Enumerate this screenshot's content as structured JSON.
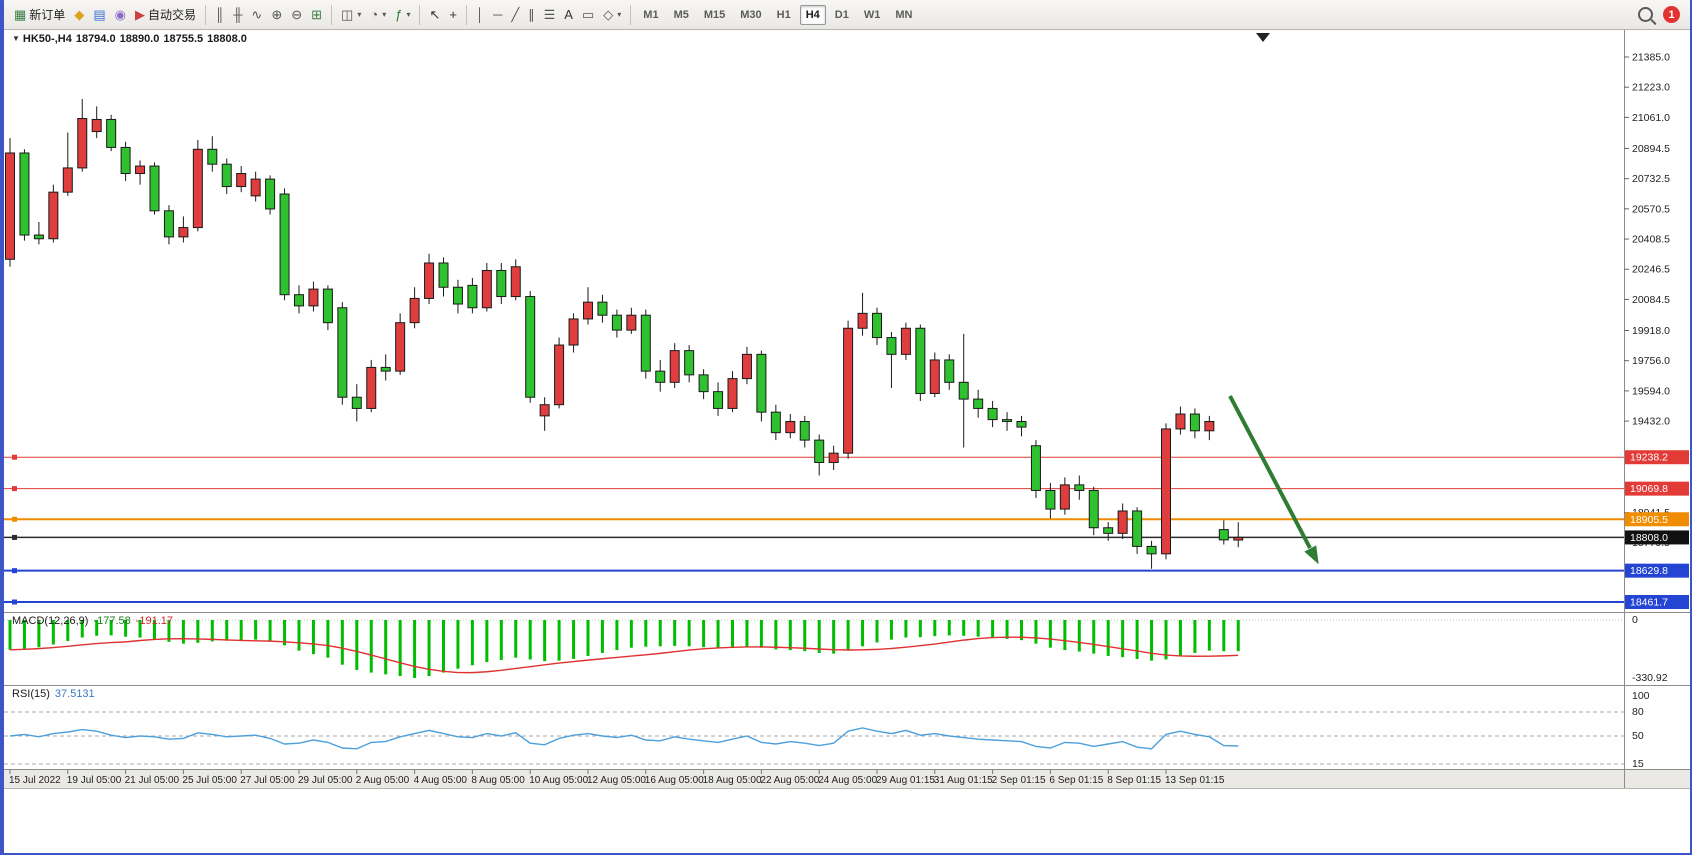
{
  "toolbar": {
    "notification_count": "1",
    "items": [
      {
        "type": "btn",
        "name": "new-order-button",
        "glyph": "▦",
        "glyph_color": "#3a7d44",
        "label": "新订单"
      },
      {
        "type": "btn",
        "name": "mql-wizard-button",
        "glyph": "◆",
        "glyph_color": "#d9a41b"
      },
      {
        "type": "btn",
        "name": "market-watch-button",
        "glyph": "▤",
        "glyph_color": "#3b6fd4"
      },
      {
        "type": "btn",
        "name": "sound-alert-button",
        "glyph": "◉",
        "glyph_color": "#8a6cc9"
      },
      {
        "type": "btn",
        "name": "auto-trading-button",
        "glyph": "▶",
        "glyph_color": "#c94040",
        "label": "自动交易"
      },
      {
        "type": "sep"
      },
      {
        "type": "btn",
        "name": "bar-chart-mode-button",
        "glyph": "║",
        "glyph_color": "#555555"
      },
      {
        "type": "btn",
        "name": "candlestick-mode-button",
        "glyph": "╫",
        "glyph_color": "#555555"
      },
      {
        "type": "btn",
        "name": "line-chart-mode-button",
        "glyph": "∿",
        "glyph_color": "#555555"
      },
      {
        "type": "btn",
        "name": "zoom-in-button",
        "glyph": "⊕",
        "glyph_color": "#555555"
      },
      {
        "type": "btn",
        "name": "zoom-out-button",
        "glyph": "⊖",
        "glyph_color": "#555555"
      },
      {
        "type": "btn",
        "name": "tile-windows-button",
        "glyph": "⊞",
        "glyph_color": "#3a7d44"
      },
      {
        "type": "sep"
      },
      {
        "type": "btn",
        "name": "new-chart-button",
        "glyph": "◫",
        "glyph_color": "#555555",
        "caret": true
      },
      {
        "type": "btn",
        "name": "period-button",
        "glyph": "◔",
        "glyph_color": "#555555",
        "caret": true
      },
      {
        "type": "btn",
        "name": "indicators-button",
        "glyph": "ƒ",
        "glyph_color": "#2e7d32",
        "caret": true
      },
      {
        "type": "sep"
      },
      {
        "type": "btn",
        "name": "cursor-button",
        "glyph": "↖",
        "glyph_color": "#333333"
      },
      {
        "type": "btn",
        "name": "crosshair-button",
        "glyph": "+",
        "glyph_color": "#333333"
      },
      {
        "type": "sep"
      },
      {
        "type": "btn",
        "name": "vertical-line-button",
        "glyph": "│",
        "glyph_color": "#555555"
      },
      {
        "type": "btn",
        "name": "horizontal-line-button",
        "glyph": "─",
        "glyph_color": "#555555"
      },
      {
        "type": "btn",
        "name": "trendline-button",
        "glyph": "╱",
        "glyph_color": "#555555"
      },
      {
        "type": "btn",
        "name": "channel-button",
        "glyph": "∥",
        "glyph_color": "#555555"
      },
      {
        "type": "btn",
        "name": "fibonacci-button",
        "glyph": "☰",
        "glyph_color": "#555555"
      },
      {
        "type": "btn",
        "name": "text-button",
        "glyph": "A",
        "glyph_color": "#333333"
      },
      {
        "type": "btn",
        "name": "text-label-button",
        "glyph": "▭",
        "glyph_color": "#555555"
      },
      {
        "type": "btn",
        "name": "shapes-button",
        "glyph": "◇",
        "glyph_color": "#555555",
        "caret": true
      },
      {
        "type": "sep"
      },
      {
        "type": "tf",
        "name": "timeframe-m1-button",
        "label": "M1"
      },
      {
        "type": "tf",
        "name": "timeframe-m5-button",
        "label": "M5"
      },
      {
        "type": "tf",
        "name": "timeframe-m15-button",
        "label": "M15"
      },
      {
        "type": "tf",
        "name": "timeframe-m30-button",
        "label": "M30"
      },
      {
        "type": "tf",
        "name": "timeframe-h1-button",
        "label": "H1"
      },
      {
        "type": "tf",
        "name": "timeframe-h4-button",
        "label": "H4",
        "active": true
      },
      {
        "type": "tf",
        "name": "timeframe-d1-button",
        "label": "D1"
      },
      {
        "type": "tf",
        "name": "timeframe-w1-button",
        "label": "W1"
      },
      {
        "type": "tf",
        "name": "timeframe-mn-button",
        "label": "MN"
      }
    ]
  },
  "chart": {
    "title": {
      "dropdown_glyph": "▼",
      "symbol_period": "HK50-,H4",
      "open": "18794.0",
      "high": "18890.0",
      "low": "18755.5",
      "close": "18808.0"
    },
    "macd": {
      "name": "MACD(12,26,9)",
      "value_main": "-177.58",
      "value_signal": "-191.17"
    },
    "rsi": {
      "name": "RSI(15)",
      "value": "37.5131"
    }
  },
  "chart_data": {
    "type": "candlestick",
    "symbol": "HK50-",
    "timeframe": "H4",
    "ohlc_display": {
      "open": 18794.0,
      "high": 18890.0,
      "low": 18755.5,
      "close": 18808.0
    },
    "candles": {
      "open": [
        20300,
        20870,
        20430,
        20410,
        20660,
        20790,
        20985,
        21050,
        20900,
        20760,
        20800,
        20560,
        20420,
        20470,
        20890,
        20810,
        20690,
        20640,
        20730,
        20650,
        20110,
        20050,
        20140,
        20040,
        19560,
        19500,
        19720,
        19700,
        19960,
        20090,
        20280,
        20150,
        20160,
        20040,
        20240,
        20100,
        20100,
        19460,
        19520,
        19840,
        19980,
        20070,
        20000,
        19920,
        20000,
        19700,
        19640,
        19810,
        19680,
        19590,
        19500,
        19660,
        19790,
        19480,
        19370,
        19430,
        19330,
        19210,
        19260,
        19930,
        20010,
        19880,
        19790,
        19930,
        19580,
        19760,
        19640,
        19550,
        19500,
        19440,
        19430,
        19300,
        19060,
        18960,
        19090,
        19060,
        18860,
        18830,
        18950,
        18760,
        18720,
        19390,
        19470,
        19380,
        18850,
        18794
      ],
      "high": [
        20950,
        20890,
        20500,
        20700,
        20980,
        21160,
        21120,
        21075,
        20930,
        20830,
        20820,
        20590,
        20530,
        20940,
        20960,
        20840,
        20800,
        20770,
        20750,
        20680,
        20160,
        20180,
        20160,
        20070,
        19630,
        19760,
        19790,
        20010,
        20150,
        20330,
        20310,
        20190,
        20200,
        20280,
        20280,
        20300,
        20130,
        19560,
        19880,
        20010,
        20150,
        20110,
        20030,
        20040,
        20030,
        19760,
        19850,
        19840,
        19710,
        19640,
        19700,
        19830,
        19810,
        19520,
        19470,
        19460,
        19360,
        19300,
        19970,
        20120,
        20040,
        19910,
        19960,
        19950,
        19800,
        19790,
        19900,
        19600,
        19540,
        19480,
        19460,
        19330,
        19100,
        19130,
        19140,
        19080,
        18890,
        18990,
        18970,
        18790,
        19420,
        19510,
        19500,
        19460,
        18900,
        18890
      ],
      "low": [
        20260,
        20400,
        20380,
        20390,
        20640,
        20770,
        20950,
        20880,
        20720,
        20700,
        20540,
        20380,
        20390,
        20450,
        20770,
        20650,
        20660,
        20610,
        20540,
        20080,
        20010,
        20020,
        19920,
        19520,
        19430,
        19480,
        19650,
        19680,
        19930,
        20060,
        20100,
        20010,
        20010,
        20020,
        20060,
        20080,
        19530,
        19380,
        19500,
        19800,
        19950,
        19960,
        19880,
        19900,
        19660,
        19590,
        19610,
        19640,
        19550,
        19460,
        19480,
        19630,
        19430,
        19330,
        19340,
        19290,
        19140,
        19170,
        19230,
        19890,
        19840,
        19610,
        19760,
        19540,
        19560,
        19600,
        19290,
        19450,
        19400,
        19380,
        19350,
        19020,
        18910,
        18930,
        19010,
        18820,
        18790,
        18800,
        18720,
        18640,
        18690,
        19360,
        19340,
        19330,
        18770,
        18755.5
      ],
      "close": [
        20870,
        20430,
        20410,
        20660,
        20790,
        21055,
        21050,
        20900,
        20760,
        20800,
        20560,
        20420,
        20470,
        20890,
        20810,
        20690,
        20760,
        20730,
        20570,
        20110,
        20050,
        20140,
        19960,
        19560,
        19500,
        19720,
        19700,
        19960,
        20090,
        20280,
        20150,
        20060,
        20040,
        20240,
        20100,
        20260,
        19560,
        19520,
        19840,
        19980,
        20070,
        20000,
        19920,
        20000,
        19700,
        19640,
        19810,
        19680,
        19590,
        19500,
        19660,
        19790,
        19480,
        19370,
        19430,
        19330,
        19210,
        19260,
        19930,
        20010,
        19880,
        19790,
        19930,
        19580,
        19760,
        19640,
        19550,
        19500,
        19440,
        19430,
        19400,
        19060,
        18960,
        19090,
        19060,
        18860,
        18830,
        18950,
        18760,
        18720,
        19390,
        19470,
        19380,
        19430,
        18795,
        18808
      ]
    },
    "colors": {
      "bull": "#e03e3e",
      "bear": "#2fc12f",
      "wick": "#1a1a1a",
      "body_outline": "#1a1a1a"
    },
    "macd": {
      "params": "12,26,9",
      "value": -177.58,
      "signal_value": -191.17,
      "scale": {
        "max_label": "0",
        "min_label": "-330.92",
        "min": -330.92
      },
      "bar_color": "#00bd00",
      "signal_color": "#e03131",
      "histogram": [
        -170,
        -165,
        -155,
        -140,
        -120,
        -100,
        -90,
        -88,
        -95,
        -100,
        -110,
        -125,
        -135,
        -130,
        -122,
        -118,
        -115,
        -112,
        -118,
        -145,
        -175,
        -195,
        -215,
        -255,
        -285,
        -300,
        -310,
        -320,
        -331,
        -320,
        -300,
        -278,
        -258,
        -240,
        -228,
        -215,
        -225,
        -235,
        -232,
        -222,
        -205,
        -188,
        -172,
        -158,
        -152,
        -150,
        -148,
        -150,
        -155,
        -160,
        -158,
        -152,
        -158,
        -168,
        -172,
        -178,
        -188,
        -192,
        -175,
        -150,
        -128,
        -112,
        -100,
        -98,
        -92,
        -88,
        -90,
        -95,
        -100,
        -108,
        -115,
        -135,
        -158,
        -172,
        -180,
        -192,
        -205,
        -212,
        -222,
        -232,
        -225,
        -205,
        -188,
        -175,
        -178,
        -177.58
      ]
    },
    "rsi": {
      "period": 15,
      "value": 37.5131,
      "line_color": "#4da0dc",
      "level_labels": [
        "100",
        "80",
        "50",
        "15"
      ],
      "level_values": [
        100,
        80,
        50,
        15
      ],
      "values": [
        50,
        52,
        49,
        53,
        55,
        58,
        56,
        51,
        48,
        50,
        49,
        46,
        47,
        54,
        52,
        49,
        50,
        51,
        47,
        40,
        41,
        45,
        42,
        35,
        34,
        42,
        43,
        49,
        53,
        57,
        53,
        49,
        48,
        53,
        50,
        54,
        41,
        39,
        47,
        51,
        53,
        50,
        48,
        51,
        45,
        44,
        49,
        46,
        44,
        42,
        46,
        50,
        42,
        40,
        43,
        41,
        38,
        41,
        56,
        60,
        56,
        53,
        57,
        51,
        53,
        50,
        48,
        46,
        45,
        44,
        43,
        37,
        35,
        42,
        41,
        37,
        40,
        43,
        36,
        34,
        52,
        56,
        52,
        49,
        38,
        37.5
      ]
    },
    "levels": [
      {
        "value": 19238.2,
        "label": "19238.2",
        "line_color": "#e23a36",
        "badge_color": "#e23a36",
        "width": 1
      },
      {
        "value": 19069.8,
        "label": "19069.8",
        "line_color": "#e23a36",
        "badge_color": "#e23a36",
        "width": 1
      },
      {
        "value": 18905.5,
        "label": "18905.5",
        "line_color": "#f08c00",
        "badge_color": "#f08c00",
        "width": 2
      },
      {
        "value": 18808.0,
        "label": "18808.0",
        "line_color": "#2b2b2b",
        "badge_color": "#111111",
        "width": 1.5
      },
      {
        "value": 18629.8,
        "label": "18629.8",
        "line_color": "#2444d4",
        "badge_color": "#2444d4",
        "width": 2
      },
      {
        "value": 18461.7,
        "label": "18461.7",
        "line_color": "#2444d4",
        "badge_color": "#2444d4",
        "width": 2
      }
    ],
    "price_axis_ticks": [
      21385.0,
      21223.0,
      21061.0,
      20894.5,
      20732.5,
      20570.5,
      20408.5,
      20246.5,
      20084.5,
      19918.0,
      19756.0,
      19594.0,
      19432.0,
      18941.5,
      18779.5
    ],
    "time_labels": [
      "15 Jul 2022",
      "19 Jul 05:00",
      "21 Jul 05:00",
      "25 Jul 05:00",
      "27 Jul 05:00",
      "29 Jul 05:00",
      "2 Aug 05:00",
      "4 Aug 05:00",
      "8 Aug 05:00",
      "10 Aug 05:00",
      "12 Aug 05:00",
      "16 Aug 05:00",
      "18 Aug 05:00",
      "22 Aug 05:00",
      "24 Aug 05:00",
      "29 Aug 01:15",
      "31 Aug 01:15",
      "2 Sep 01:15",
      "6 Sep 01:15",
      "8 Sep 01:15",
      "13 Sep 01:15"
    ],
    "annotations": {
      "trend_arrow": {
        "color": "#2e7d32",
        "direction": "down-right"
      }
    }
  }
}
